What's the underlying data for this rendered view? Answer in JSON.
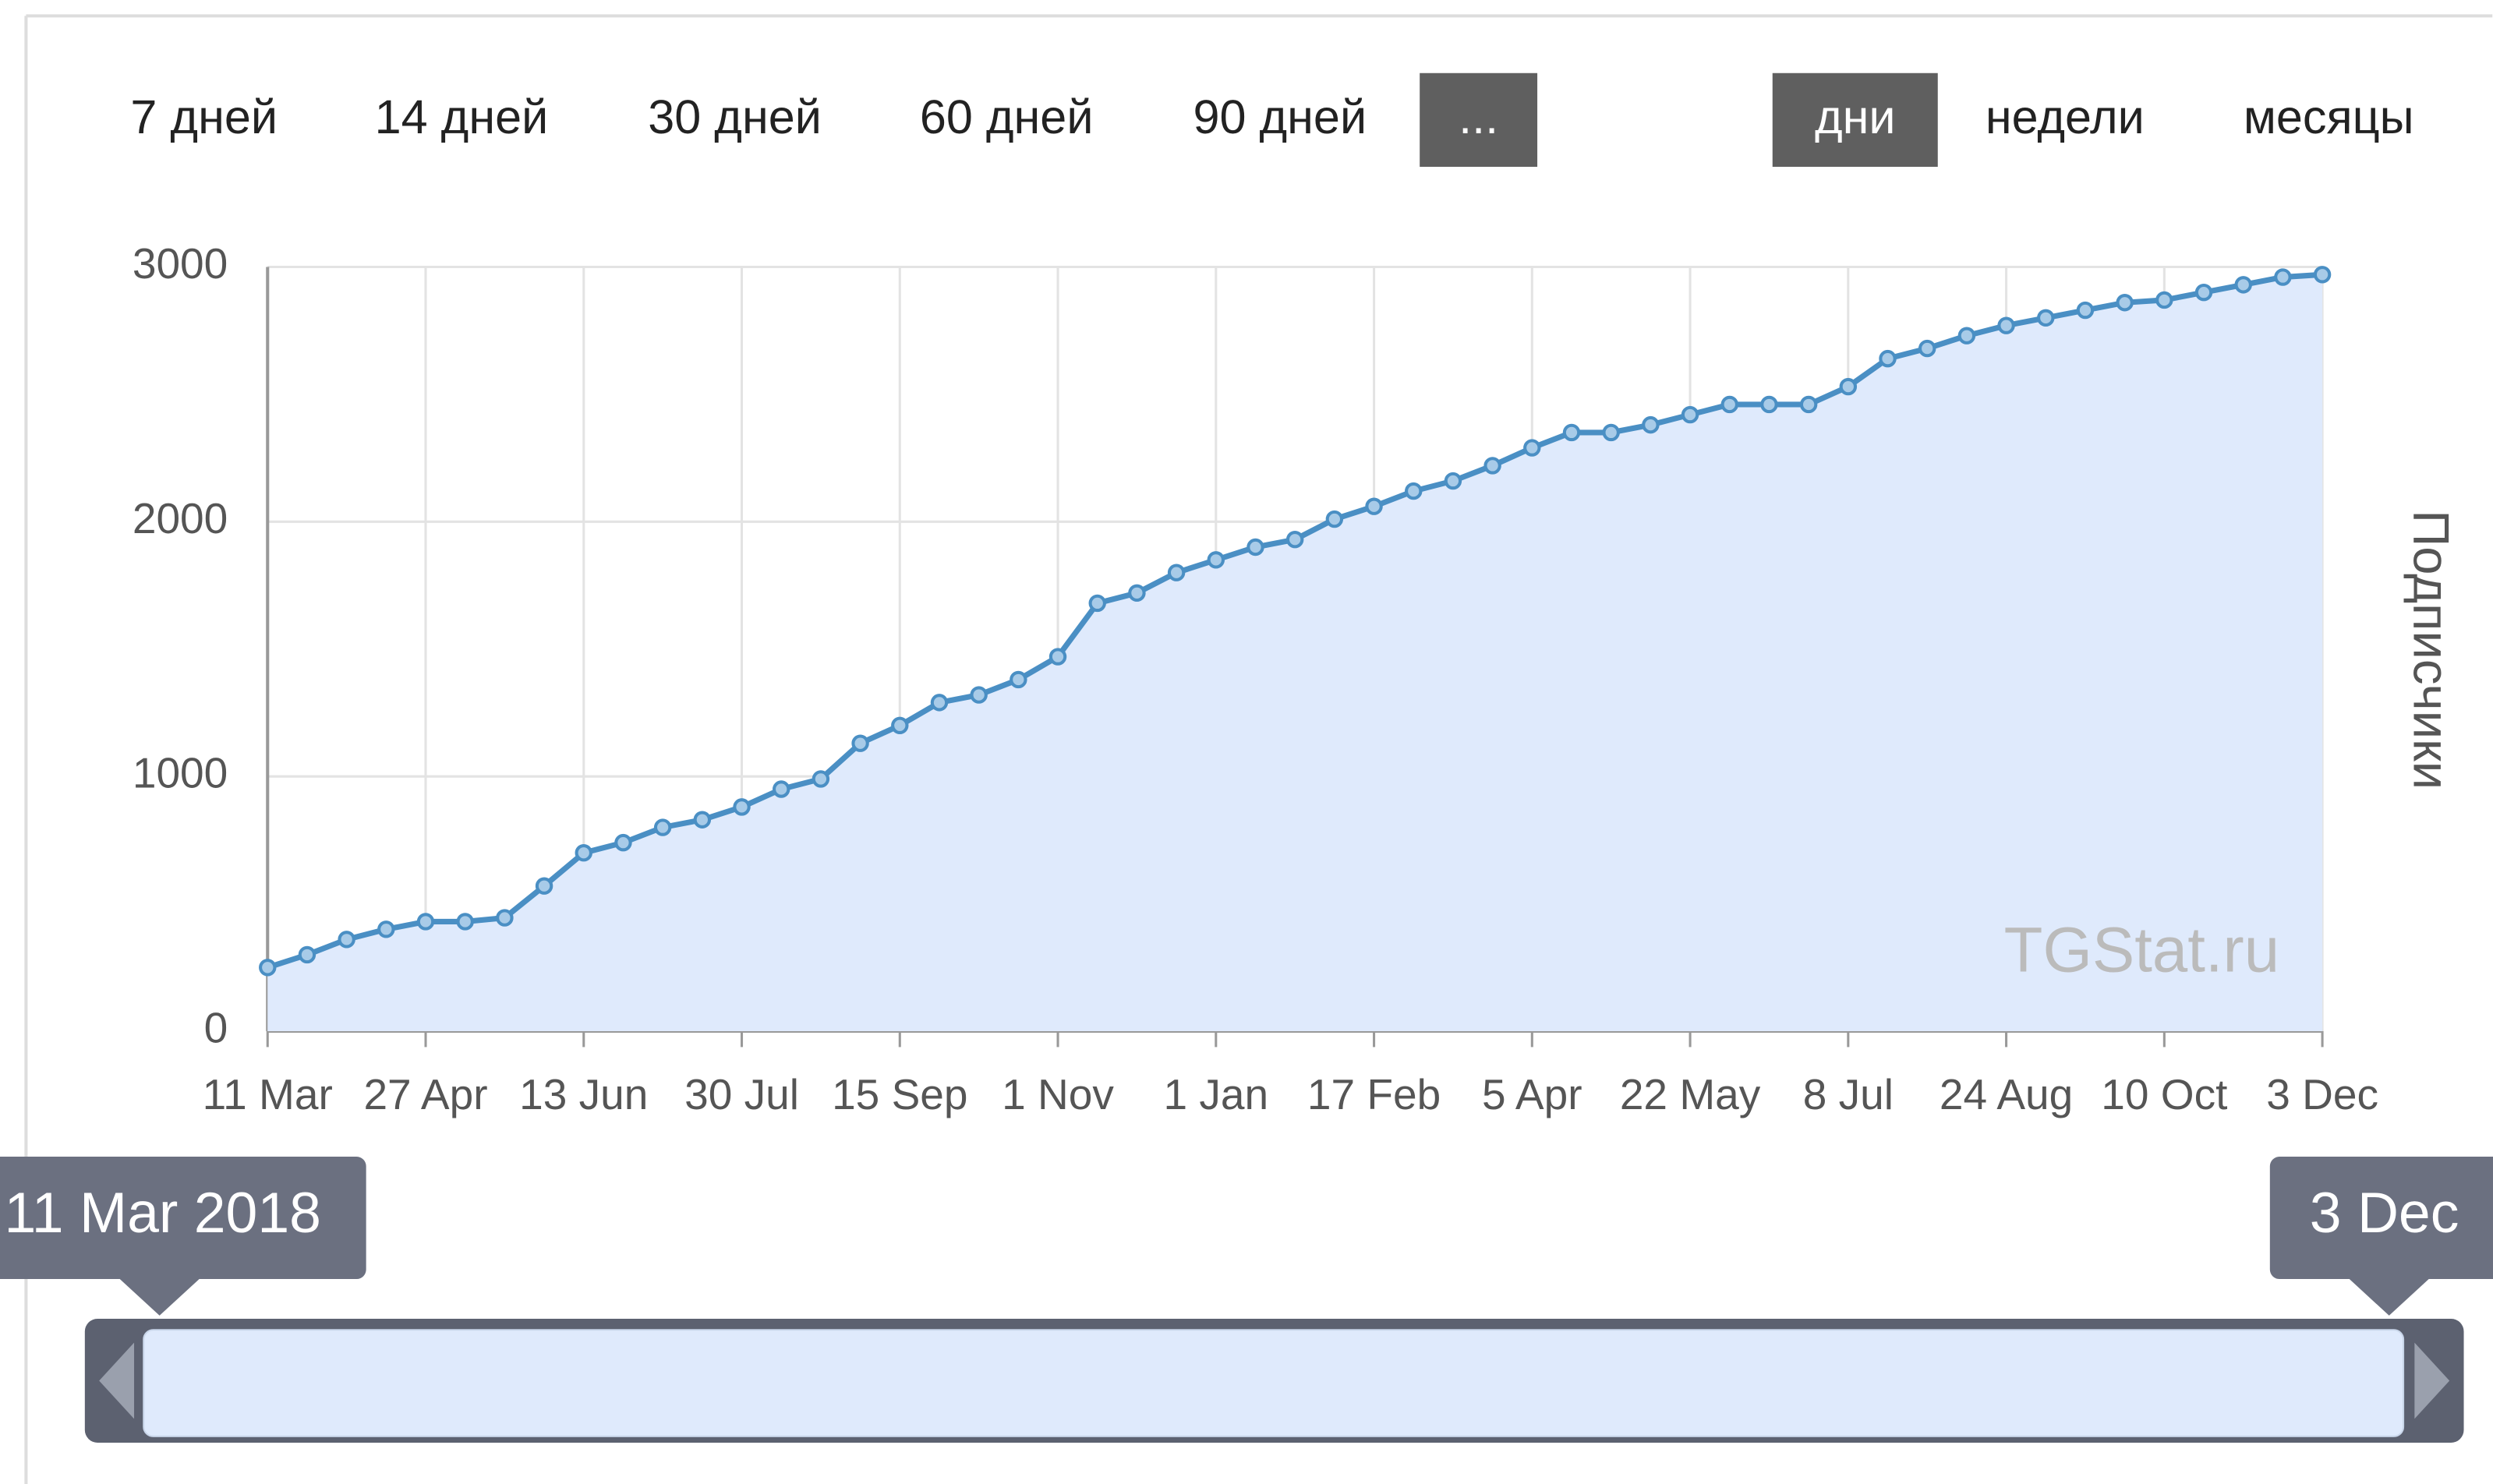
{
  "buttons": {
    "ranges": [
      "7 дней",
      "14 дней",
      "30 дней",
      "60 дней",
      "90 дней"
    ],
    "more": "...",
    "active_unit": "дни",
    "units": [
      "недели",
      "месяцы"
    ]
  },
  "chart_data": {
    "type": "line",
    "y_label": "Подписчики",
    "watermark": "TGStat.ru",
    "categories": [
      "11 Mar",
      null,
      null,
      null,
      "27 Apr",
      null,
      null,
      null,
      "13 Jun",
      null,
      null,
      null,
      "30 Jul",
      null,
      null,
      null,
      "15 Sep",
      null,
      null,
      null,
      "1 Nov",
      null,
      null,
      null,
      "1 Jan",
      null,
      null,
      null,
      "17 Feb",
      null,
      null,
      null,
      "5 Apr",
      null,
      null,
      null,
      "22 May",
      null,
      null,
      null,
      "8 Jul",
      null,
      null,
      null,
      "24 Aug",
      null,
      null,
      null,
      "10 Oct",
      null,
      null,
      null,
      "3 Dec"
    ],
    "values": [
      250,
      300,
      360,
      400,
      430,
      430,
      445,
      570,
      700,
      740,
      800,
      830,
      880,
      950,
      990,
      1130,
      1200,
      1290,
      1320,
      1380,
      1470,
      1680,
      1720,
      1800,
      1850,
      1900,
      1930,
      2010,
      2060,
      2120,
      2160,
      2220,
      2290,
      2350,
      2350,
      2380,
      2420,
      2460,
      2460,
      2460,
      2530,
      2640,
      2680,
      2730,
      2770,
      2800,
      2830,
      2860,
      2870,
      2900,
      2930,
      2960,
      2970
    ],
    "color": "#4a8fc4",
    "fill": "#dfeafc",
    "ylim": [
      0,
      3000
    ],
    "yticks": [
      0,
      1000,
      2000,
      3000
    ],
    "grid": true
  },
  "navigator": {
    "start": "11 Mar 2018",
    "end": "3 Dec"
  }
}
